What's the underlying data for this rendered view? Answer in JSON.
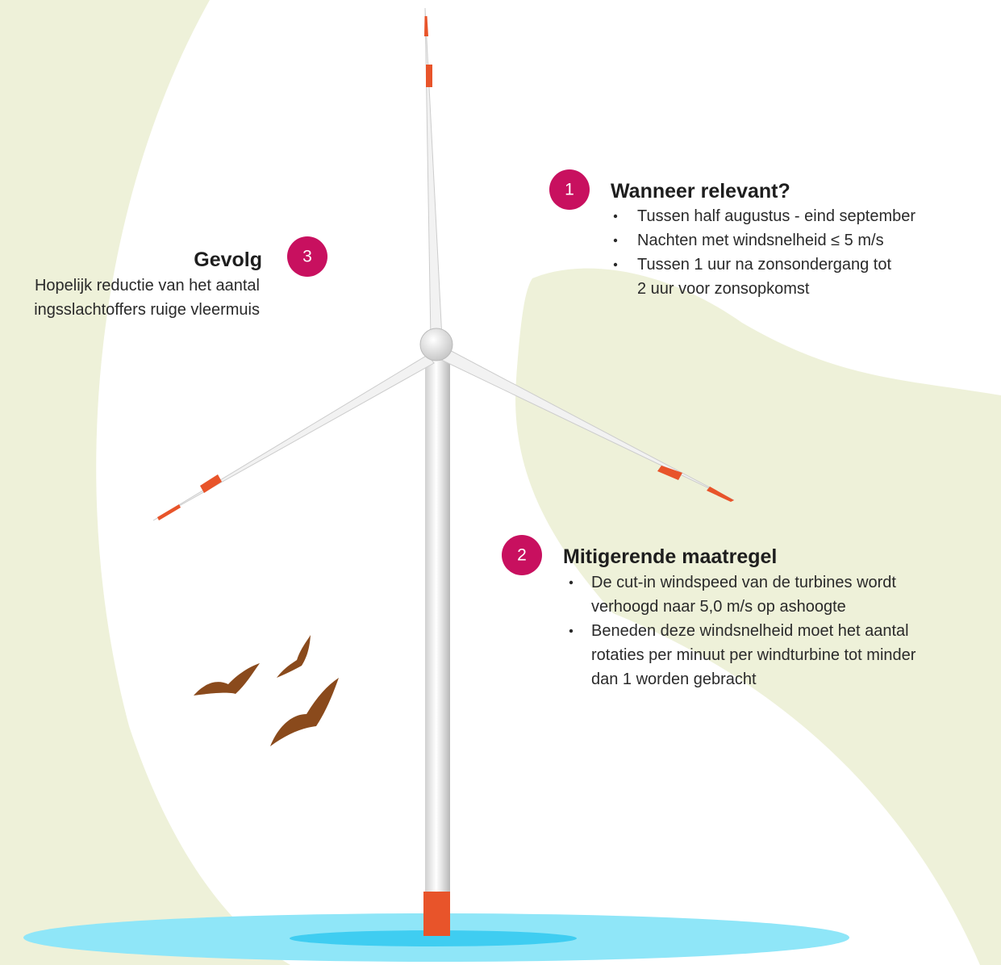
{
  "callouts": [
    {
      "number": "1",
      "title": "Wanneer relevant?",
      "items": [
        [
          "Tussen half augustus - eind september"
        ],
        [
          "Nachten met windsnelheid ≤ 5 m/s"
        ],
        [
          "Tussen 1 uur na zonsondergang tot",
          "2 uur voor zonsopkomst"
        ]
      ]
    },
    {
      "number": "2",
      "title": "Mitigerende maatregel",
      "items": [
        [
          "De cut-in windspeed van de turbines wordt",
          "verhoogd naar 5,0 m/s op ashoogte"
        ],
        [
          "Beneden deze windsnelheid moet het aantal",
          "rotaties per minuut per windturbine tot minder",
          "dan 1 worden gebracht"
        ]
      ]
    },
    {
      "number": "3",
      "title": "Gevolg",
      "lines": [
        "Hopelijk reductie van het aantal",
        "ingsslachtoffers ruige vleermuis"
      ]
    }
  ]
}
